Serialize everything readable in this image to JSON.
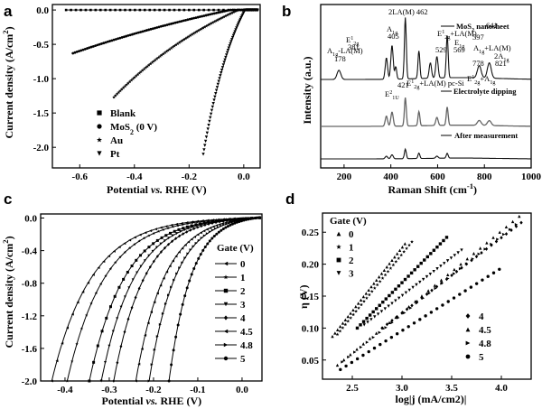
{
  "panels": {
    "a": {
      "label": "a"
    },
    "b": {
      "label": "b"
    },
    "c": {
      "label": "c"
    },
    "d": {
      "label": "d"
    }
  },
  "chart_data": [
    {
      "panel": "a",
      "type": "scatter",
      "xlabel": "Potential vs. RHE (V)",
      "ylabel": "Current density (A/cm²)",
      "xlim": [
        -0.7,
        0.06
      ],
      "ylim": [
        -2.3,
        0.08
      ],
      "xticks": [
        "-0.6",
        "-0.4",
        "-0.2",
        "0.0"
      ],
      "yticks": [
        "0.0",
        "-0.5",
        "-1.0",
        "-1.5",
        "-2.0"
      ],
      "legend_position": "bottom-center",
      "series": [
        {
          "name": "Blank",
          "marker": "square",
          "x": [
            -0.65,
            0.05
          ],
          "y": [
            0.0,
            0.0
          ]
        },
        {
          "name": "MoS2 (0 V)",
          "marker": "circle",
          "x0": -0.625,
          "y0": -0.63,
          "onset": -0.05,
          "tau": 0.17,
          "x_end": 0.05
        },
        {
          "name": "Au",
          "marker": "star",
          "x0": -0.475,
          "y0": -1.27,
          "onset": -0.02,
          "tau": 0.15,
          "x_end": 0.05
        },
        {
          "name": "Pt",
          "marker": "triangle-down",
          "x0": -0.148,
          "y0": -2.1,
          "onset": 0.005,
          "tau": 0.034,
          "x_end": 0.05
        }
      ]
    },
    {
      "panel": "b",
      "type": "line",
      "xlabel": "Raman Shift (cm⁻¹)",
      "ylabel": "Intensity (a.u.)",
      "xlim": [
        100,
        1000
      ],
      "xticks": [
        "200",
        "400",
        "600",
        "800",
        "1000"
      ],
      "series": [
        {
          "name": "MoS2 nanosheet",
          "offset": 2.0,
          "peaks": [
            [
              178,
              0.15,
              8
            ],
            [
              381,
              0.35,
              5
            ],
            [
              405,
              0.55,
              5
            ],
            [
              421,
              0.2,
              4
            ],
            [
              462,
              1.0,
              4
            ],
            [
              520,
              0.45,
              4
            ],
            [
              569,
              0.25,
              5
            ],
            [
              597,
              0.35,
              5
            ],
            [
              641,
              0.7,
              4
            ],
            [
              778,
              0.2,
              8
            ],
            [
              821,
              0.25,
              8
            ]
          ]
        },
        {
          "name": "Electrolyte dipping",
          "offset": 1.0,
          "peaks": [
            [
              381,
              0.25,
              5
            ],
            [
              405,
              0.35,
              5
            ],
            [
              462,
              0.7,
              4
            ],
            [
              520,
              0.35,
              4
            ],
            [
              597,
              0.2,
              5
            ],
            [
              641,
              0.45,
              4
            ],
            [
              778,
              0.12,
              8
            ],
            [
              821,
              0.12,
              8
            ]
          ]
        },
        {
          "name": "After measurement",
          "offset": 0.0,
          "peaks": [
            [
              381,
              0.1,
              5
            ],
            [
              405,
              0.15,
              5
            ],
            [
              462,
              0.35,
              4
            ],
            [
              520,
              0.2,
              4
            ],
            [
              597,
              0.08,
              5
            ],
            [
              641,
              0.18,
              4
            ]
          ]
        }
      ],
      "annotations": [
        "A1g-LA(M)",
        "178",
        "2LA(M)",
        "462",
        "E12g",
        "381",
        "A1g",
        "405",
        "E12g+LA(M)",
        "641",
        "529",
        "E1g",
        "569",
        "597",
        "A1g+LA(M)",
        "778",
        "2A1g",
        "821",
        "421",
        "E21u",
        "E12g+LA(M)",
        "pc-Si",
        "E12g+A1g"
      ]
    },
    {
      "panel": "c",
      "type": "scatter",
      "xlabel": "Potential vs. RHE (V)",
      "ylabel": "Current density (A/cm²)",
      "xlim": [
        -0.455,
        0.045
      ],
      "ylim": [
        -2.0,
        0.05
      ],
      "xticks": [
        "-0.4",
        "-0.3",
        "-0.2",
        "-0.1",
        "0.0"
      ],
      "yticks": [
        "0.0",
        "-0.4",
        "-0.8",
        "-1.2",
        "-1.6",
        "-2.0"
      ],
      "legend_title": "Gate (V)",
      "series": [
        {
          "name": "0",
          "marker": "triangle-left",
          "x0": -0.43,
          "tau": 0.09
        },
        {
          "name": "1",
          "marker": "star",
          "x0": -0.395,
          "tau": 0.085
        },
        {
          "name": "2",
          "marker": "square",
          "x0": -0.345,
          "tau": 0.08
        },
        {
          "name": "3",
          "marker": "triangle-down",
          "x0": -0.318,
          "tau": 0.075
        },
        {
          "name": "4",
          "marker": "diamond",
          "x0": -0.29,
          "tau": 0.07
        },
        {
          "name": "4.5",
          "marker": "triangle-left",
          "x0": -0.24,
          "tau": 0.065
        },
        {
          "name": "4.8",
          "marker": "triangle-right",
          "x0": -0.21,
          "tau": 0.06
        },
        {
          "name": "5",
          "marker": "circle",
          "x0": -0.165,
          "tau": 0.05
        }
      ]
    },
    {
      "panel": "d",
      "type": "scatter",
      "xlabel": "log|j (mA/cm2)|",
      "ylabel": "η (V)",
      "xlim": [
        2.2,
        4.3
      ],
      "ylim": [
        0.02,
        0.28
      ],
      "xticks": [
        "2.5",
        "3.0",
        "3.5",
        "4.0"
      ],
      "yticks": [
        "0.05",
        "0.10",
        "0.15",
        "0.20",
        "0.25"
      ],
      "legend_title": "Gate (V)",
      "series": [
        {
          "name": "0",
          "marker": "triangle-up",
          "x": [
            2.3,
            3.03
          ],
          "y": [
            0.087,
            0.232
          ]
        },
        {
          "name": "1",
          "marker": "star",
          "x": [
            2.35,
            3.1
          ],
          "y": [
            0.09,
            0.235
          ]
        },
        {
          "name": "2",
          "marker": "square",
          "x": [
            2.55,
            3.45
          ],
          "y": [
            0.1,
            0.242
          ]
        },
        {
          "name": "3",
          "marker": "triangle-down",
          "x": [
            2.62,
            3.6
          ],
          "y": [
            0.105,
            0.222
          ]
        },
        {
          "name": "4",
          "marker": "diamond",
          "x": [
            2.8,
            4.2
          ],
          "y": [
            0.1,
            0.265
          ]
        },
        {
          "name": "4.5",
          "marker": "triangle-up",
          "x": [
            2.35,
            4.18
          ],
          "y": [
            0.042,
            0.275
          ]
        },
        {
          "name": "4.8",
          "marker": "triangle-right",
          "x": [
            2.4,
            4.15
          ],
          "y": [
            0.047,
            0.262
          ]
        },
        {
          "name": "5",
          "marker": "circle",
          "x": [
            2.38,
            3.98
          ],
          "y": [
            0.035,
            0.192
          ]
        }
      ]
    }
  ]
}
